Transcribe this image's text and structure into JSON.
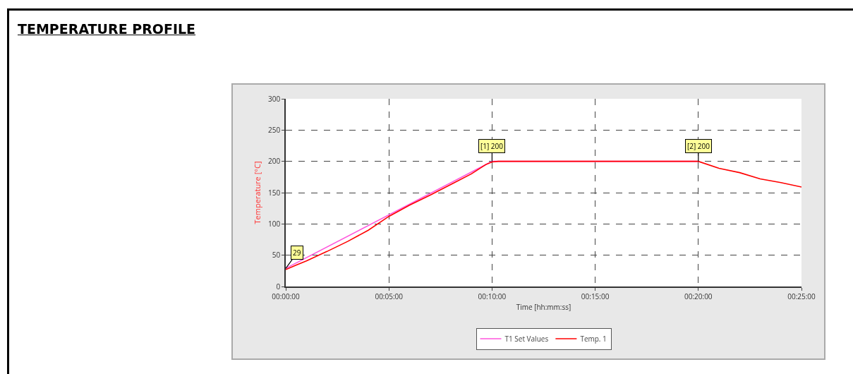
{
  "chart_data": {
    "type": "line",
    "title": "TEMPERATURE PROFILE",
    "xlabel": "Time [hh:mm:ss]",
    "ylabel": "Temperature [°C]",
    "xlim": [
      0,
      0.41667
    ],
    "ylim": [
      0,
      300
    ],
    "xticks": [
      {
        "value": 0,
        "label": "00:00:00"
      },
      {
        "value": 0.08333,
        "label": "00:05:00"
      },
      {
        "value": 0.16667,
        "label": "00:10:00"
      },
      {
        "value": 0.25,
        "label": "00:15:00"
      },
      {
        "value": 0.33333,
        "label": "00:20:00"
      },
      {
        "value": 0.41667,
        "label": "00:25:00"
      }
    ],
    "yticks": [
      0,
      50,
      100,
      150,
      200,
      250,
      300
    ],
    "grid": true,
    "legend": "bottom",
    "marker": "none",
    "line_style": "solid",
    "series": [
      {
        "name": "T1 Set Values",
        "color": "#ff55dd",
        "x": [
          0,
          0.16667,
          0.33333
        ],
        "values": [
          29,
          200,
          200
        ]
      },
      {
        "name": "Temp. 1",
        "color": "#ff0000",
        "x": [
          0,
          0.0083,
          0.0167,
          0.0333,
          0.05,
          0.0667,
          0.0833,
          0.1,
          0.1167,
          0.1333,
          0.15,
          0.1617,
          0.1667,
          0.1717,
          0.2,
          0.2333,
          0.2667,
          0.3,
          0.3333,
          0.35,
          0.3667,
          0.3833,
          0.4,
          0.41667
        ],
        "values": [
          27,
          34,
          41,
          56,
          72,
          90,
          112,
          130,
          146,
          163,
          180,
          195,
          199,
          200,
          200,
          200,
          200,
          200,
          200,
          189,
          182,
          172,
          166,
          159
        ]
      }
    ],
    "annotations": [
      {
        "text": "29",
        "x": 0,
        "y": 29
      },
      {
        "text": "[1] 200",
        "x": 0.16667,
        "y": 200
      },
      {
        "text": "[2] 200",
        "x": 0.33333,
        "y": 200
      }
    ]
  }
}
